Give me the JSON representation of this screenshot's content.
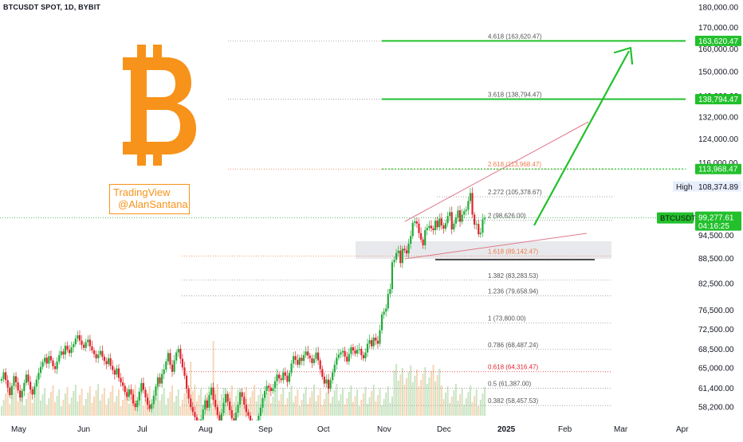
{
  "header": {
    "symbol_line": "BTCUSDT SPOT, 1D, BYBIT"
  },
  "watermark": {
    "line1": "TradingView",
    "line2": "@AlanSantana"
  },
  "logo": {
    "icon": "bitcoin-logo-icon",
    "color": "#f7931a"
  },
  "colors": {
    "up": "#22ab3a",
    "down": "#e0242f",
    "target": "#22c02c",
    "fib_orange": "#f07a4a",
    "fib_red": "#e0242f",
    "fib_gray": "#555555",
    "wedge": "#e07a8a",
    "support_zone": "#e6e7ea"
  },
  "chart_data": {
    "type": "candlestick",
    "y_axis": {
      "ticks": [
        "180,000.00",
        "170,000.00",
        "160,000.00",
        "150,000.00",
        "140,000.00",
        "132,000.00",
        "124,000.00",
        "116,000.00",
        "94,500.00",
        "88,500.00",
        "82,500.00",
        "76,500.00",
        "72,500.00",
        "68,500.00",
        "65,000.00",
        "61,400.00",
        "58,200.00"
      ],
      "scale": "log",
      "range": [
        56800,
        182000
      ]
    },
    "x_axis": {
      "ticks": [
        "May",
        "Jun",
        "Jul",
        "Aug",
        "Sep",
        "Oct",
        "Nov",
        "Dec",
        "2025",
        "Feb",
        "Mar",
        "Apr"
      ]
    },
    "fib_levels": [
      {
        "label": "4.618 (163,620.47)",
        "value": 163620.47,
        "color": "gray"
      },
      {
        "label": "3.618 (138,794.47)",
        "value": 138794.47,
        "color": "gray"
      },
      {
        "label": "2.618 (113,968.47)",
        "value": 113968.47,
        "color": "orange"
      },
      {
        "label": "2.272 (105,378.67)",
        "value": 105378.67,
        "color": "gray"
      },
      {
        "label": "2 (98,626.00)",
        "value": 98626.0,
        "color": "gray"
      },
      {
        "label": "1.618 (89,142.47)",
        "value": 89142.47,
        "color": "orange"
      },
      {
        "label": "1.382 (83,283.53)",
        "value": 83283.53,
        "color": "gray"
      },
      {
        "label": "1.236 (79,658.94)",
        "value": 79658.94,
        "color": "gray"
      },
      {
        "label": "1 (73,800.00)",
        "value": 73800.0,
        "color": "gray"
      },
      {
        "label": "0.786 (68,487.24)",
        "value": 68487.24,
        "color": "gray"
      },
      {
        "label": "0.618 (64,316.47)",
        "value": 64316.47,
        "color": "red"
      },
      {
        "label": "0.5 (61,387.00)",
        "value": 61387.0,
        "color": "gray"
      },
      {
        "label": "0.382 (58,457.53)",
        "value": 58457.53,
        "color": "gray"
      }
    ],
    "price_tags": [
      {
        "text": "163,620.47",
        "value": 163620.47,
        "kind": "target"
      },
      {
        "text": "138,794.47",
        "value": 138794.47,
        "kind": "target"
      },
      {
        "text": "113,968.47",
        "value": 113968.47,
        "kind": "target"
      }
    ],
    "high": {
      "label": "High",
      "value_text": "108,374.89",
      "value": 108374.89
    },
    "current": {
      "symbol": "BTCUSDT",
      "price_text": "99,277.61",
      "countdown": "04:16:25",
      "value": 99277.61
    },
    "series_closes": [
      63000,
      64200,
      62800,
      61500,
      60200,
      61800,
      63500,
      62400,
      61000,
      59800,
      60900,
      62300,
      63800,
      62500,
      61200,
      60300,
      61700,
      62900,
      64100,
      65200,
      66100,
      66900,
      65800,
      67200,
      66400,
      65300,
      64800,
      66200,
      67400,
      68100,
      67500,
      69200,
      68400,
      67800,
      68900,
      69500,
      70600,
      71300,
      70200,
      69400,
      68800,
      69900,
      70400,
      69100,
      68300,
      67600,
      66800,
      67500,
      68200,
      67100,
      66300,
      65700,
      66800,
      65400,
      64600,
      63800,
      64900,
      63200,
      62400,
      61800,
      60700,
      59900,
      61200,
      60300,
      58800,
      58200,
      59300,
      60800,
      62300,
      61100,
      59800,
      58600,
      57900,
      58700,
      60100,
      61700,
      63300,
      62200,
      63900,
      64700,
      66200,
      67800,
      65600,
      64300,
      66400,
      67900,
      68600,
      66700,
      65100,
      63600,
      61300,
      59600,
      58200,
      57400,
      56600,
      55800,
      54900,
      56200,
      57800,
      59300,
      58100,
      60200,
      61500,
      59400,
      58200,
      56900,
      55600,
      57200,
      58900,
      60400,
      59100,
      57700,
      56400,
      55900,
      57300,
      58600,
      60700,
      59900,
      58600,
      57400,
      56800,
      55700,
      54600,
      53900,
      55300,
      56800,
      58100,
      59700,
      60900,
      61800,
      61500,
      60900,
      61400,
      62600,
      63800,
      63100,
      62800,
      64200,
      63600,
      62500,
      64100,
      65800,
      67200,
      66500,
      65600,
      66900,
      66300,
      67400,
      68100,
      67300,
      66800,
      65900,
      66700,
      67900,
      66400,
      64800,
      63400,
      62200,
      62900,
      61300,
      62800,
      64200,
      65600,
      66900,
      67500,
      67900,
      68200,
      67100,
      66200,
      67600,
      68900,
      68300,
      67700,
      68400,
      68600,
      67400,
      66800,
      67900,
      69600,
      70300,
      69100,
      70800,
      70200,
      69600,
      72300,
      75600,
      76200,
      76900,
      80100,
      81200,
      87600,
      88200,
      89900,
      90500,
      87400,
      91000,
      90600,
      89800,
      92300,
      94300,
      97900,
      98300,
      97700,
      95100,
      93400,
      91900,
      95900,
      96500,
      97100,
      96400,
      95900,
      98500,
      96700,
      99100,
      97200,
      96300,
      97800,
      99800,
      100900,
      96100,
      97700,
      99300,
      101400,
      98200,
      100200,
      101200,
      101600,
      104100,
      106500,
      100200,
      97400,
      97600,
      94800,
      95200,
      98900,
      99277
    ]
  }
}
